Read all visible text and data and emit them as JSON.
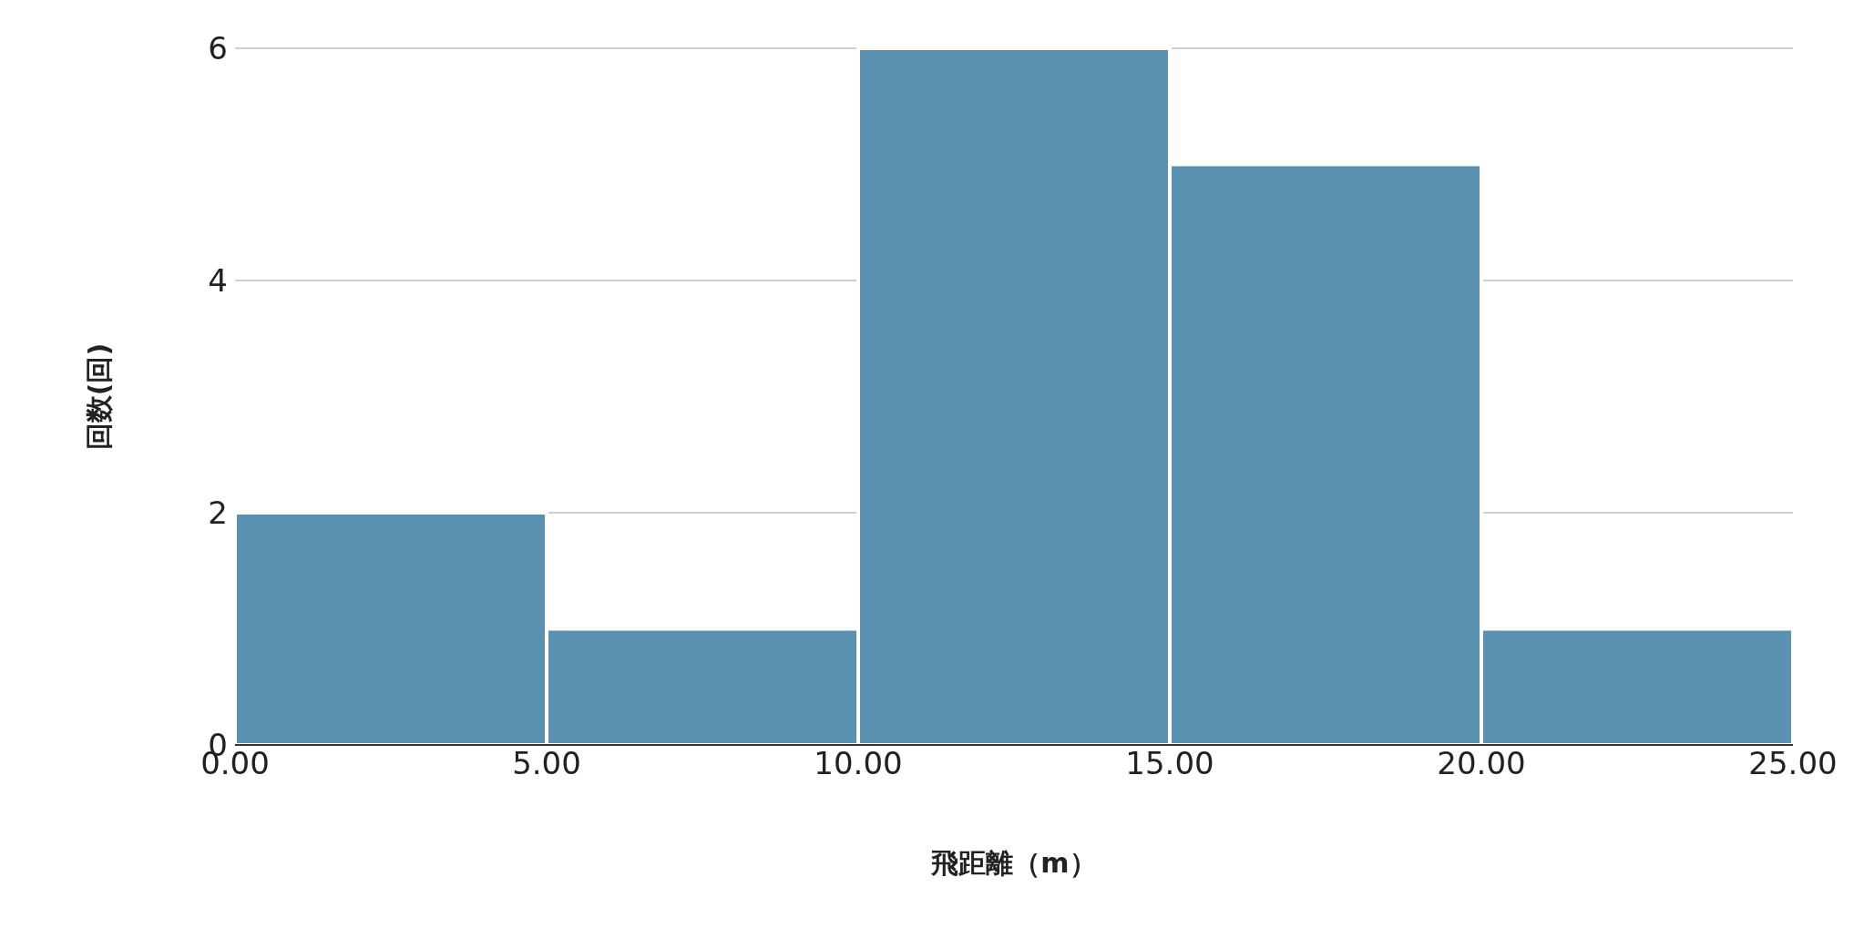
{
  "chart_data": {
    "type": "histogram",
    "xlabel": "飛距離（m）",
    "ylabel": "回数(回)",
    "bins": [
      0,
      5,
      10,
      15,
      20,
      25
    ],
    "values": [
      2,
      1,
      6,
      5,
      1
    ],
    "color": "#5a91b0",
    "xlim": [
      0,
      25
    ],
    "xticks": [
      {
        "value": 0,
        "label": "0.00"
      },
      {
        "value": 5,
        "label": "5.00"
      },
      {
        "value": 10,
        "label": "10.00"
      },
      {
        "value": 15,
        "label": "15.00"
      },
      {
        "value": 20,
        "label": "20.00"
      },
      {
        "value": 25,
        "label": "25.00"
      }
    ],
    "ylim": [
      0,
      6
    ],
    "yticks": [
      0,
      2,
      4,
      6
    ],
    "grid": "y"
  }
}
